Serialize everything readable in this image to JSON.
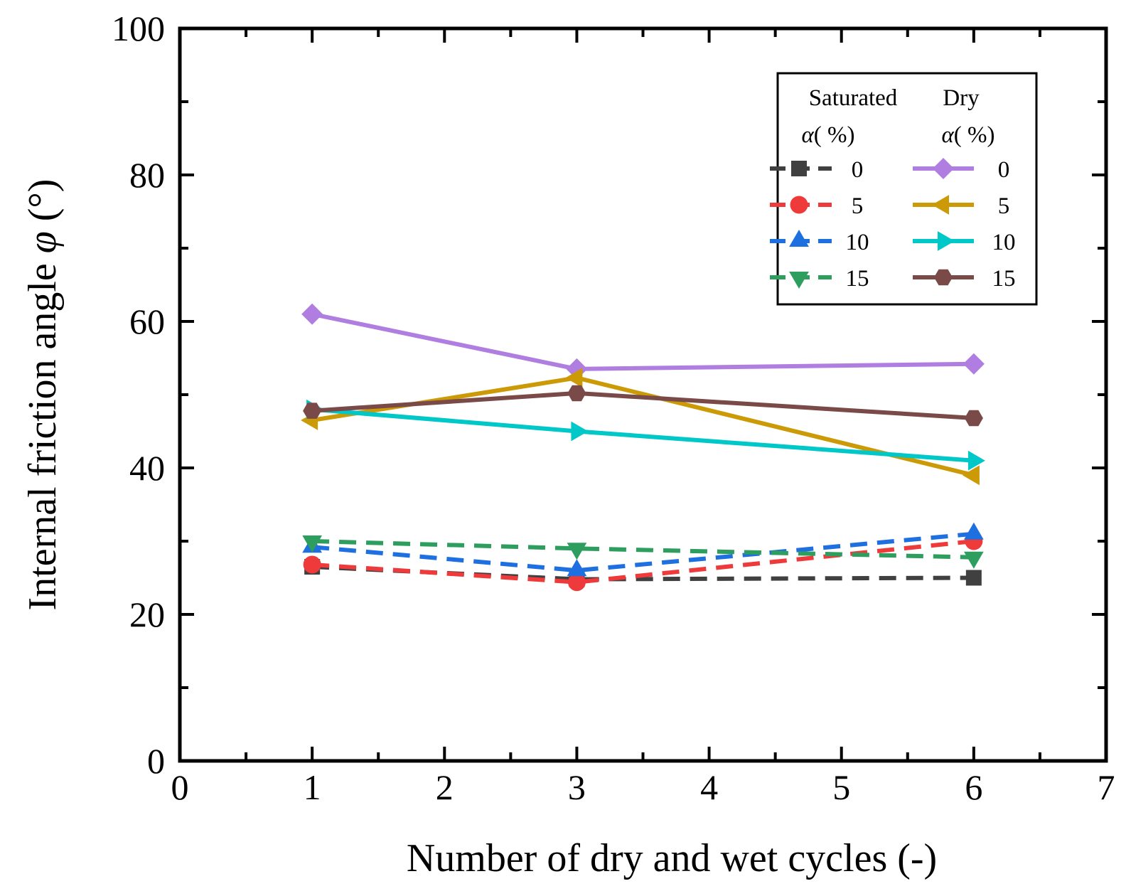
{
  "chart_data": {
    "type": "line",
    "title": "",
    "xlabel": "Number of dry and wet cycles (-)",
    "ylabel_prefix": "Internal friction angle ",
    "ylabel_symbol": "φ",
    "ylabel_suffix": " (°)",
    "xlim": [
      0,
      7
    ],
    "ylim": [
      0,
      100
    ],
    "x_ticks": [
      "0",
      "1",
      "2",
      "3",
      "4",
      "5",
      "6",
      "7"
    ],
    "y_ticks": [
      "0",
      "20",
      "40",
      "60",
      "80",
      "100"
    ],
    "x": [
      1,
      3,
      6
    ],
    "legend": {
      "position": "top-right",
      "group_saturated": "Saturated",
      "group_dry": "Dry",
      "alpha_symbol": "α",
      "alpha_unit": "( %)"
    },
    "series": [
      {
        "name": "0",
        "group": "Saturated",
        "values": [
          26.5,
          24.8,
          25.0
        ],
        "color": "#404040",
        "marker": "square",
        "dash": true
      },
      {
        "name": "5",
        "group": "Saturated",
        "values": [
          26.8,
          24.4,
          30.0
        ],
        "color": "#ee3a3a",
        "marker": "circle",
        "dash": true
      },
      {
        "name": "10",
        "group": "Saturated",
        "values": [
          29.2,
          26.0,
          31.0
        ],
        "color": "#1e6fe0",
        "marker": "triangle-up",
        "dash": true
      },
      {
        "name": "15",
        "group": "Saturated",
        "values": [
          30.0,
          29.0,
          27.8
        ],
        "color": "#2e9e5e",
        "marker": "triangle-down",
        "dash": true
      },
      {
        "name": "0",
        "group": "Dry",
        "values": [
          61.0,
          53.5,
          54.2
        ],
        "color": "#b07ee0",
        "marker": "diamond",
        "dash": false
      },
      {
        "name": "5",
        "group": "Dry",
        "values": [
          46.5,
          52.3,
          39.0
        ],
        "color": "#cc9a06",
        "marker": "triangle-left",
        "dash": false
      },
      {
        "name": "10",
        "group": "Dry",
        "values": [
          48.0,
          45.0,
          41.0
        ],
        "color": "#00c8c8",
        "marker": "triangle-right",
        "dash": false
      },
      {
        "name": "15",
        "group": "Dry",
        "values": [
          47.8,
          50.2,
          46.8
        ],
        "color": "#7a4a48",
        "marker": "hexagon",
        "dash": false
      }
    ]
  }
}
